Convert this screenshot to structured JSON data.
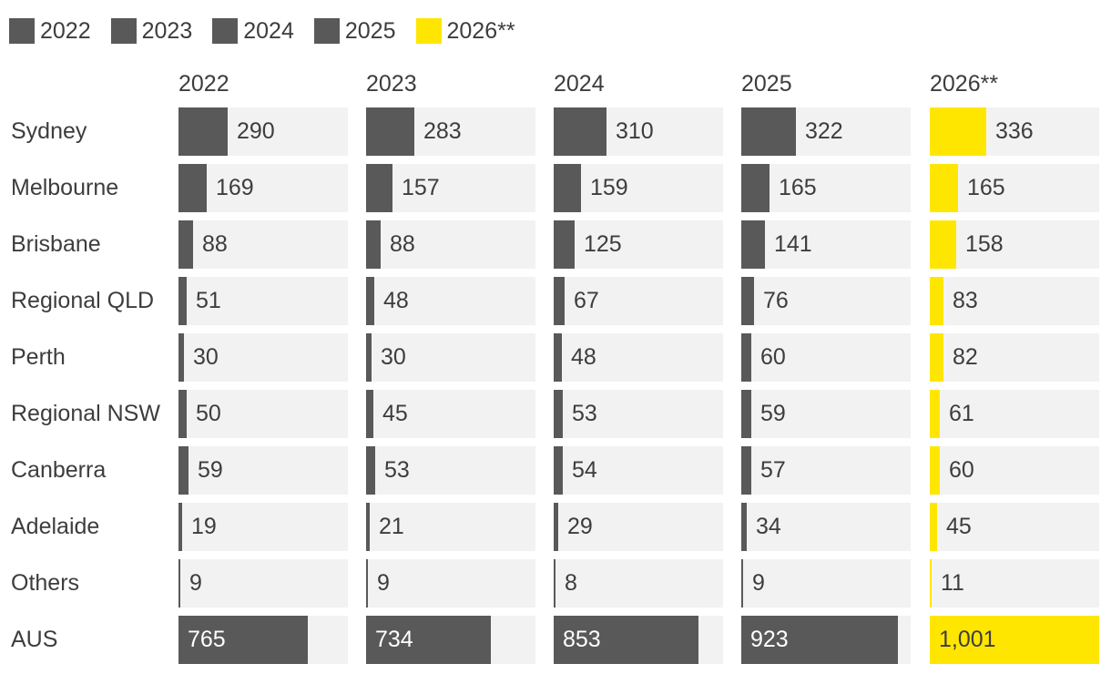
{
  "chart_data": {
    "type": "bar",
    "title": "",
    "legend_position": "top-left",
    "colors": {
      "dark": "#595959",
      "highlight": "#ffe600",
      "track": "#f2f2f2",
      "text": "#3d3d3d"
    },
    "categories": [
      "Sydney",
      "Melbourne",
      "Brisbane",
      "Regional QLD",
      "Perth",
      "Regional NSW",
      "Canberra",
      "Adelaide",
      "Others"
    ],
    "total_label": "AUS",
    "series": [
      {
        "name": "2022",
        "color": "#595959",
        "values": [
          290,
          169,
          88,
          51,
          30,
          50,
          59,
          19,
          9
        ],
        "total": 765,
        "total_label": "765"
      },
      {
        "name": "2023",
        "color": "#595959",
        "values": [
          283,
          157,
          88,
          48,
          30,
          45,
          53,
          21,
          9
        ],
        "total": 734,
        "total_label": "734"
      },
      {
        "name": "2024",
        "color": "#595959",
        "values": [
          310,
          159,
          125,
          67,
          48,
          53,
          54,
          29,
          8
        ],
        "total": 853,
        "total_label": "853"
      },
      {
        "name": "2025",
        "color": "#595959",
        "values": [
          322,
          165,
          141,
          76,
          60,
          59,
          57,
          34,
          9
        ],
        "total": 923,
        "total_label": "923"
      },
      {
        "name": "2026**",
        "color": "#ffe600",
        "values": [
          336,
          165,
          158,
          83,
          82,
          61,
          60,
          45,
          11
        ],
        "total": 1001,
        "total_label": "1,001"
      }
    ],
    "category_scale_max": 1000,
    "total_scale_max": 1000
  }
}
